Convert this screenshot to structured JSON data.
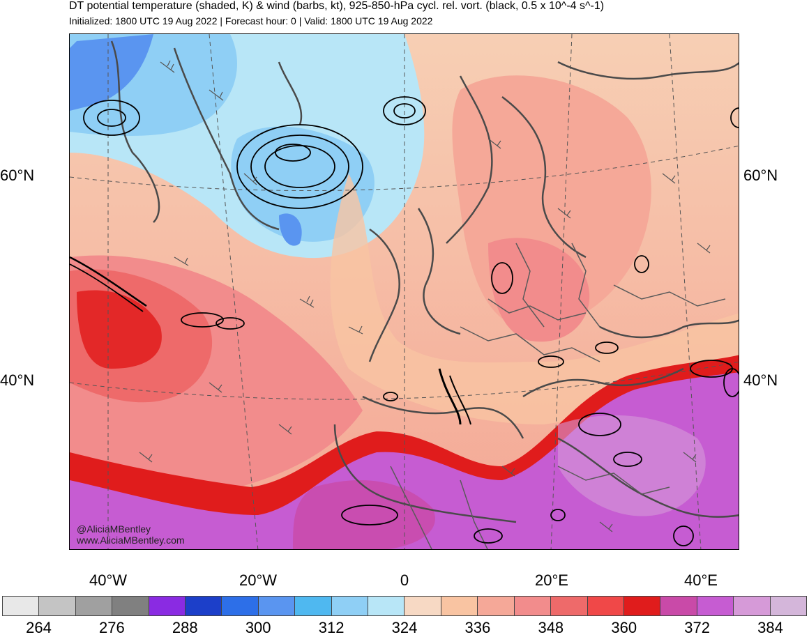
{
  "header": {
    "title": "DT potential temperature (shaded, K) & wind (barbs, kt), 925-850-hPa cycl. rel. vort. (black, 0.5 x 10^-4 s^-1)",
    "subtitle": "Initialized: 1800 UTC 19 Aug 2022 | Forecast hour: 0 | Valid: 1800 UTC 19 Aug 2022"
  },
  "map": {
    "lat_labels": [
      "60°N",
      "40°N"
    ],
    "lon_labels": [
      "40°W",
      "20°W",
      "0",
      "20°E",
      "40°E"
    ],
    "credit_handle": "@AliciaMBentley",
    "credit_site": "www.AliciaMBentley.com"
  },
  "colorbar": {
    "colors": [
      "#e8e8e8",
      "#c4c4c4",
      "#a0a0a0",
      "#808080",
      "#8a2be2",
      "#1c3fc9",
      "#2d6fe8",
      "#5a95f0",
      "#4fb8f0",
      "#8fcff5",
      "#b8e6f7",
      "#f7d9c4",
      "#f9c4a2",
      "#f5a898",
      "#f28c8c",
      "#ee6a6a",
      "#f04848",
      "#e01c1c",
      "#c94aa8",
      "#c65cd2",
      "#d69ad8",
      "#d4b6da"
    ],
    "tick_labels": [
      "264",
      "276",
      "288",
      "300",
      "312",
      "324",
      "336",
      "348",
      "360",
      "372",
      "384"
    ]
  }
}
